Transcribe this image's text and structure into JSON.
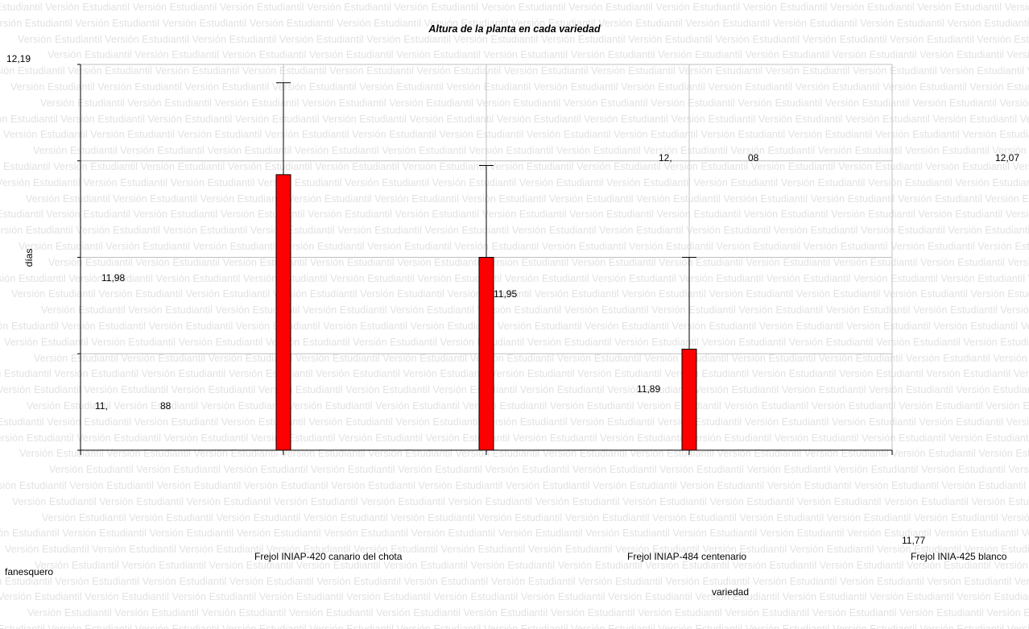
{
  "watermark": {
    "text": "Versión Estudiantil"
  },
  "chart_data": {
    "type": "bar",
    "title": "Altura de la planta en cada variedad",
    "xlabel": "variedad",
    "ylabel": "días",
    "ylim": [
      11.77,
      12.19
    ],
    "y_top_label": "12,19",
    "y_bottom_label": "11,77",
    "categories": [
      "Frejol INIAP-420 canario del chota",
      "Frejol INIAP-484 centenario",
      "Frejol INIA-425 blanco fanesquero"
    ],
    "series": [
      {
        "values": [
          12.07,
          11.98,
          11.88
        ],
        "error_tops": [
          12.17,
          12.08,
          11.98
        ],
        "value_labels": [
          "12,07",
          "11,98",
          "11,88"
        ],
        "color": "#ff0000"
      }
    ],
    "extra_labels": {
      "split_first": "12,",
      "split_second": "08",
      "mid_value": "11,95",
      "low_value": "11,89"
    },
    "grid": true,
    "legend": "none"
  }
}
